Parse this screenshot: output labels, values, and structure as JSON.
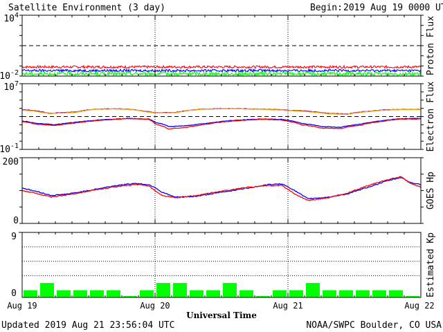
{
  "header": {
    "title": "Satellite Environment (3 day)",
    "begin_label": "Begin:",
    "begin_value": "2019 Aug 19 0000 UTC"
  },
  "footer": {
    "updated": "Updated 2019 Aug 21 23:56:04 UTC",
    "credit": "NOAA/SWPC Boulder, CO USA"
  },
  "colors": {
    "red": "#ff0000",
    "blue": "#0000ff",
    "green": "#00ff00",
    "orange": "#ffa500",
    "purple": "#800080",
    "frame": "#000000"
  },
  "chart_data": [
    {
      "id": "proton",
      "type": "line",
      "ylabel": "Proton Flux",
      "yscale": "log",
      "ylim": [
        0.01,
        10000
      ],
      "yticks": [
        {
          "base": "10",
          "exp": "4"
        },
        {
          "base": "10",
          "exp": "-2"
        }
      ],
      "xlim": [
        "2019-08-19",
        "2019-08-22"
      ],
      "threshold": 10,
      "series": [
        {
          "color": "red",
          "level": 0.08,
          "noise": 0.12
        },
        {
          "color": "blue",
          "level": 0.035,
          "noise": 0.12
        },
        {
          "color": "green",
          "level": 0.017,
          "noise": 0.18
        }
      ]
    },
    {
      "id": "electron",
      "type": "line",
      "ylabel": "Electron Flux",
      "yscale": "log",
      "ylim": [
        0.1,
        10000000
      ],
      "yticks": [
        {
          "base": "10",
          "exp": "7"
        },
        {
          "base": "10",
          "exp": "-1"
        }
      ],
      "threshold": 1000,
      "series": [
        {
          "color": "purple",
          "x": [
            0,
            0.08,
            0.2,
            0.4,
            0.55,
            0.7,
            0.82,
            0.9,
            1,
            1.15,
            1.35,
            1.55,
            1.75,
            1.92,
            2,
            2.1,
            2.3,
            2.45,
            2.55,
            2.7,
            2.85,
            3
          ],
          "y": [
            7000,
            5500,
            2500,
            3500,
            8000,
            9000,
            7500,
            5000,
            3000,
            3000,
            8000,
            9500,
            8500,
            7000,
            6000,
            5000,
            2500,
            2000,
            3500,
            6000,
            7500,
            7500
          ]
        },
        {
          "color": "orange",
          "x": [
            0,
            0.08,
            0.2,
            0.4,
            0.55,
            0.7,
            0.82,
            0.9,
            1,
            1.15,
            1.35,
            1.55,
            1.75,
            1.92,
            2,
            2.1,
            2.3,
            2.45,
            2.55,
            2.7,
            2.85,
            3
          ],
          "y": [
            6000,
            4800,
            2200,
            3200,
            7500,
            8500,
            7000,
            4500,
            2700,
            2800,
            7500,
            9000,
            8000,
            6500,
            5500,
            4500,
            2200,
            1800,
            3200,
            5500,
            7000,
            7000
          ]
        },
        {
          "color": "blue",
          "x": [
            0,
            0.1,
            0.25,
            0.4,
            0.6,
            0.8,
            0.95,
            1,
            1.1,
            1.25,
            1.4,
            1.6,
            1.8,
            1.95,
            2,
            2.1,
            2.25,
            2.4,
            2.55,
            2.7,
            2.85,
            3
          ],
          "y": [
            300,
            150,
            100,
            200,
            400,
            600,
            500,
            200,
            60,
            80,
            150,
            350,
            500,
            450,
            350,
            150,
            60,
            50,
            120,
            300,
            550,
            600
          ]
        },
        {
          "color": "red",
          "x": [
            0,
            0.1,
            0.25,
            0.4,
            0.6,
            0.8,
            0.95,
            1,
            1.1,
            1.25,
            1.4,
            1.6,
            1.8,
            1.95,
            2,
            2.1,
            2.25,
            2.4,
            2.55,
            2.7,
            2.85,
            3
          ],
          "y": [
            250,
            120,
            80,
            160,
            350,
            550,
            450,
            120,
            30,
            50,
            120,
            300,
            450,
            380,
            280,
            100,
            40,
            35,
            90,
            250,
            480,
            500
          ]
        }
      ]
    },
    {
      "id": "hp",
      "type": "line",
      "ylabel": "GOES Hp",
      "yscale": "linear",
      "ylim": [
        0,
        200
      ],
      "yticks": [
        {
          "label": "200",
          "value": 200
        },
        {
          "label": "0",
          "value": 0
        }
      ],
      "series": [
        {
          "color": "blue",
          "x": [
            0,
            0.1,
            0.22,
            0.35,
            0.5,
            0.7,
            0.85,
            0.95,
            1,
            1.05,
            1.15,
            1.3,
            1.5,
            1.7,
            1.85,
            1.95,
            2,
            2.05,
            2.15,
            2.3,
            2.45,
            2.6,
            2.75,
            2.85,
            2.92,
            3
          ],
          "y": [
            108,
            98,
            85,
            90,
            100,
            115,
            122,
            118,
            110,
            95,
            80,
            82,
            95,
            108,
            118,
            120,
            112,
            100,
            75,
            80,
            90,
            110,
            130,
            140,
            125,
            118
          ]
        },
        {
          "color": "red",
          "x": [
            0,
            0.1,
            0.22,
            0.35,
            0.5,
            0.7,
            0.85,
            0.95,
            1,
            1.05,
            1.15,
            1.3,
            1.5,
            1.7,
            1.85,
            1.95,
            2,
            2.05,
            2.15,
            2.3,
            2.45,
            2.6,
            2.75,
            2.85,
            2.92,
            3
          ],
          "y": [
            100,
            92,
            80,
            88,
            98,
            112,
            118,
            115,
            100,
            85,
            78,
            84,
            98,
            110,
            115,
            116,
            104,
            90,
            70,
            78,
            92,
            115,
            133,
            142,
            122,
            110
          ]
        }
      ]
    },
    {
      "id": "kp",
      "type": "bar",
      "ylabel": "Estimated Kp",
      "ylim": [
        0,
        9
      ],
      "yticks": [
        {
          "label": "9",
          "value": 9
        },
        {
          "label": "0",
          "value": 0
        }
      ],
      "values": [
        1,
        2,
        1,
        1,
        1,
        1,
        0,
        1,
        2,
        2,
        1,
        1,
        2,
        1,
        0,
        1,
        1,
        2,
        1,
        1,
        1,
        1,
        1,
        0
      ]
    }
  ],
  "xaxis": {
    "ticks": [
      "Aug 19",
      "Aug 20",
      "Aug 21",
      "Aug 22"
    ],
    "label": "Universal Time"
  }
}
